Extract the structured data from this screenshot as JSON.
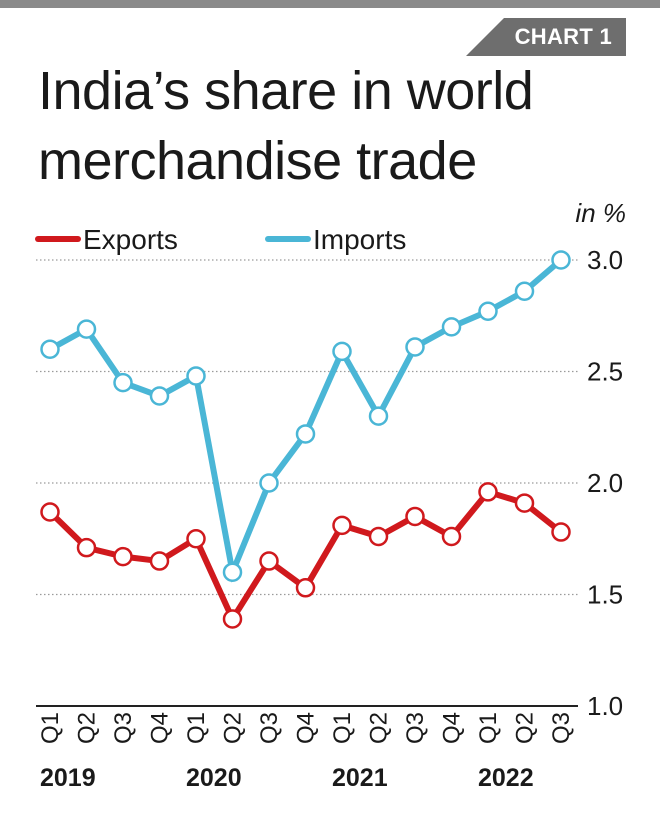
{
  "header": {
    "tag": "CHART 1",
    "title": "India’s share in world merchandise trade"
  },
  "chart_data": {
    "type": "line",
    "unit_label": "in %",
    "categories": [
      "Q1",
      "Q2",
      "Q3",
      "Q4",
      "Q1",
      "Q2",
      "Q3",
      "Q4",
      "Q1",
      "Q2",
      "Q3",
      "Q4",
      "Q1",
      "Q2",
      "Q3"
    ],
    "years": [
      "2019",
      "2020",
      "2021",
      "2022"
    ],
    "series": [
      {
        "name": "Exports",
        "color": "#d0191d",
        "values": [
          1.87,
          1.71,
          1.67,
          1.65,
          1.75,
          1.39,
          1.65,
          1.53,
          1.81,
          1.76,
          1.85,
          1.76,
          1.96,
          1.91,
          1.78
        ]
      },
      {
        "name": "Imports",
        "color": "#4ab6d6",
        "values": [
          2.6,
          2.69,
          2.45,
          2.39,
          2.48,
          1.6,
          2.0,
          2.22,
          2.59,
          2.3,
          2.61,
          2.7,
          2.77,
          2.86,
          3.0
        ]
      }
    ],
    "yticks": [
      "1.0",
      "1.5",
      "2.0",
      "2.5",
      "3.0"
    ],
    "ylim": [
      1.0,
      3.0
    ],
    "grid": true,
    "legend_position": "top-left"
  }
}
